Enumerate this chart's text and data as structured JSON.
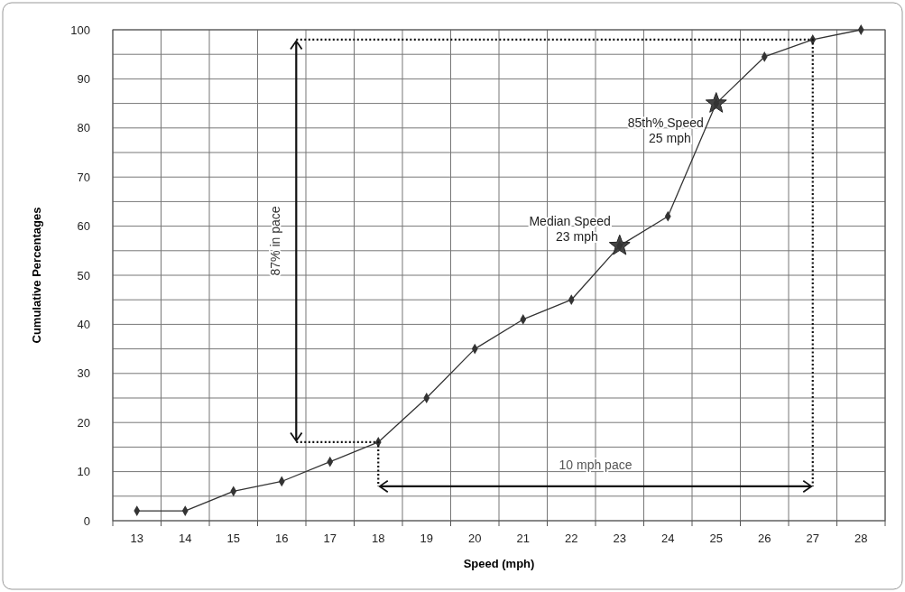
{
  "chart_data": {
    "type": "line",
    "xlabel": "Speed (mph)",
    "ylabel": "Cumulative Percentages",
    "xlim": [
      12.5,
      28.5
    ],
    "xticks": [
      {
        "value": 12.5,
        "label": null
      },
      13,
      {
        "value": 13.5,
        "label": null
      },
      14,
      {
        "value": 14.5,
        "label": null
      },
      15,
      {
        "value": 15.5,
        "label": null
      },
      16,
      {
        "value": 16.5,
        "label": null
      },
      17,
      {
        "value": 17.5,
        "label": null
      },
      18,
      {
        "value": 18.5,
        "label": null
      },
      19,
      {
        "value": 19.5,
        "label": null
      },
      20,
      {
        "value": 20.5,
        "label": null
      },
      21,
      {
        "value": 21.5,
        "label": null
      },
      22,
      {
        "value": 22.5,
        "label": null
      },
      23,
      {
        "value": 23.5,
        "label": null
      },
      24,
      {
        "value": 24.5,
        "label": null
      },
      25,
      {
        "value": 25.5,
        "label": null
      },
      26,
      {
        "value": 26.5,
        "label": null
      },
      27,
      {
        "value": 27.5,
        "label": null
      },
      28,
      {
        "value": 28.5,
        "label": null
      }
    ],
    "series": [
      {
        "color": "#333333",
        "x": [
          13,
          14,
          15,
          16,
          17,
          18,
          19,
          20,
          21,
          22,
          23,
          24,
          25,
          26,
          27,
          28
        ],
        "values": [
          2,
          2,
          6,
          8,
          12,
          16,
          25,
          35,
          41,
          45,
          56,
          62,
          85,
          94.5,
          98,
          100
        ]
      },
      {
        "type": "line",
        "color": "#111111",
        "line_style": "dotted",
        "marker": "none",
        "x": [
          16.3,
          27,
          27
        ],
        "values": [
          98,
          98,
          7
        ]
      },
      {
        "type": "line",
        "color": "#111111",
        "line_style": "dotted",
        "marker": "none",
        "x": [
          16.3,
          18,
          18
        ],
        "values": [
          16,
          16,
          7
        ]
      }
    ],
    "ylim": [
      0,
      100
    ],
    "yticks": [
      0,
      {
        "value": 5,
        "label": null
      },
      10,
      {
        "value": 15,
        "label": null
      },
      20,
      {
        "value": 25,
        "label": null
      },
      30,
      {
        "value": 35,
        "label": null
      },
      40,
      {
        "value": 45,
        "label": null
      },
      50,
      {
        "value": 55,
        "label": null
      },
      60,
      {
        "value": 65,
        "label": null
      },
      70,
      {
        "value": 75,
        "label": null
      },
      80,
      {
        "value": 85,
        "label": null
      },
      90,
      {
        "value": 95,
        "label": null
      },
      100
    ],
    "grid": true,
    "marker": "diamond",
    "line_style": "solid",
    "annotations": [
      {
        "text": "Median Speed\n23 mph",
        "x": 23,
        "y": 56
      },
      {
        "text": "85th% Speed\n25 mph",
        "x": 25,
        "y": 85
      },
      "87% in pace",
      "10 mph pace"
    ]
  }
}
